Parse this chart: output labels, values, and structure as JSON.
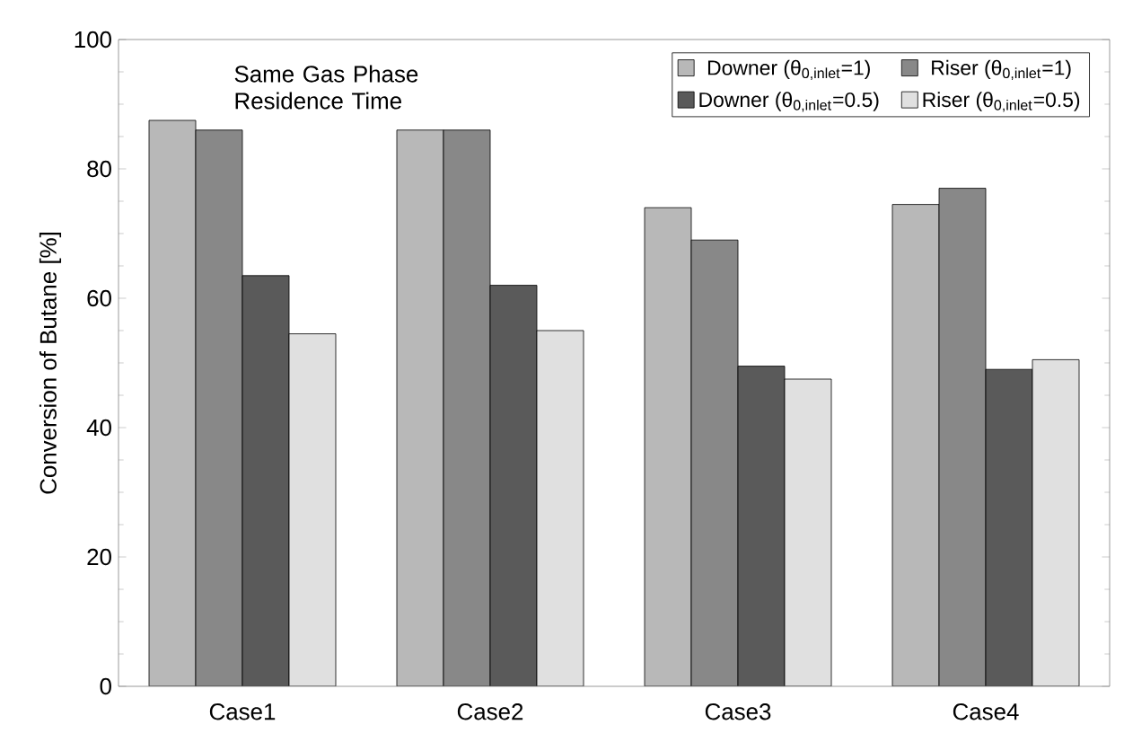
{
  "chart_data": {
    "type": "bar",
    "ylabel": "Conversion of Butane [%]",
    "categories": [
      "Case1",
      "Case2",
      "Case3",
      "Case4"
    ],
    "series": [
      {
        "name": "Downer (θ$_{0,inlet}$=1)",
        "color": "#b8b8b8",
        "values": [
          87.5,
          86,
          74,
          74.5
        ]
      },
      {
        "name": "Riser (θ$_{0,inlet}$=1)",
        "color": "#888888",
        "values": [
          86,
          86,
          69,
          77
        ]
      },
      {
        "name": "Downer (θ$_{0,inlet}$=0.5)",
        "color": "#5a5a5a",
        "values": [
          63.5,
          62,
          49.5,
          49
        ]
      },
      {
        "name": "Riser (θ$_{0,inlet}$=0.5)",
        "color": "#e0e0e0",
        "values": [
          54.5,
          55,
          47.5,
          50.5
        ]
      }
    ],
    "ylim": [
      0,
      100
    ],
    "yticks": [
      0,
      20,
      40,
      60,
      80,
      100
    ],
    "legend": "top right",
    "annotations": [
      "Same Gas Phase Residence Time"
    ]
  }
}
